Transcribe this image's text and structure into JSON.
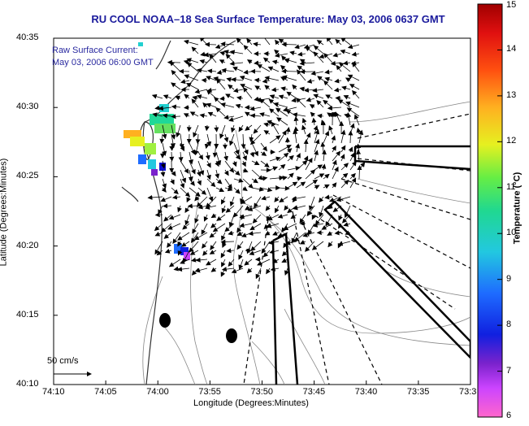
{
  "title": "RU COOL  NOAA–18  Sea Surface Temperature:  May 03, 2006 0637 GMT",
  "overlay": {
    "line1": "Raw Surface Current:",
    "line2": "May 03, 2006 06:00 GMT"
  },
  "scale_label": "50 cm/s",
  "xaxis": {
    "title": "Longitude (Degrees:Minutes)",
    "ticks": [
      "74:10",
      "74:05",
      "74:00",
      "73:55",
      "73:50",
      "73:45",
      "73:40",
      "73:35",
      "73:3"
    ]
  },
  "yaxis": {
    "title": "Latitude (Degrees:Minutes)",
    "ticks": [
      "40:35",
      "40:30",
      "40:25",
      "40:20",
      "40:15",
      "40:10"
    ]
  },
  "colorbar": {
    "title": "Temperature (°C)",
    "ticks": [
      "15",
      "14",
      "13",
      "12",
      "11",
      "10",
      "9",
      "8",
      "7",
      "6"
    ],
    "range": [
      6,
      15
    ]
  },
  "colors": {
    "title": "#1a1a9c",
    "overlay": "#2a2aa0"
  }
}
